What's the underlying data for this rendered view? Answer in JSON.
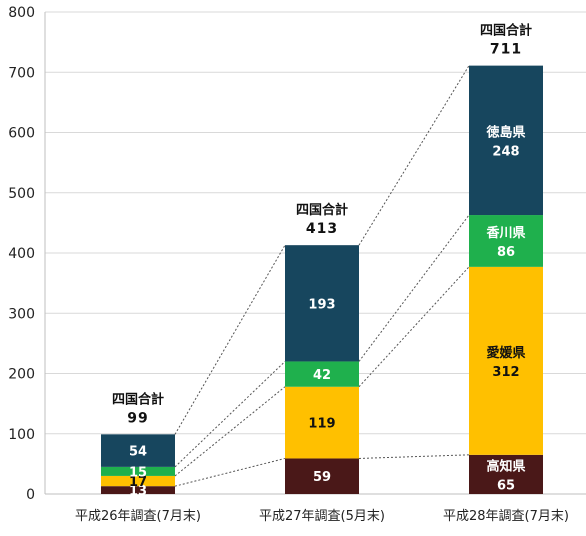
{
  "chart_data": {
    "type": "bar",
    "stacked": true,
    "ylim": [
      0,
      800
    ],
    "yticks": [
      0,
      100,
      200,
      300,
      400,
      500,
      600,
      700,
      800
    ],
    "categories": [
      "平成26年調査(7月末)",
      "平成27年調査(5月末)",
      "平成28年調査(7月末)"
    ],
    "series": [
      {
        "name": "高知県",
        "color": "#4a1818",
        "values": [
          13,
          59,
          65
        ],
        "label_color": "#ffffff"
      },
      {
        "name": "愛媛県",
        "color": "#ffc000",
        "values": [
          17,
          119,
          312
        ],
        "label_color": "#111111"
      },
      {
        "name": "香川県",
        "color": "#1fb04d",
        "values": [
          15,
          42,
          86
        ],
        "label_color": "#ffffff"
      },
      {
        "name": "徳島県",
        "color": "#17465e",
        "values": [
          54,
          193,
          248
        ],
        "label_color": "#ffffff"
      }
    ],
    "series_name_shown_in": [
      false,
      false,
      true
    ],
    "totals": [
      {
        "label": "四国合計",
        "value": "99"
      },
      {
        "label": "四国合計",
        "value": "413"
      },
      {
        "label": "四国合計",
        "value": "711"
      }
    ],
    "grid": true,
    "connector_lines": "dotted"
  }
}
